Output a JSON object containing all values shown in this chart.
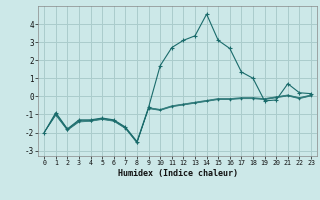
{
  "title": "",
  "xlabel": "Humidex (Indice chaleur)",
  "ylabel": "",
  "bg_color": "#cce8e8",
  "grid_color": "#aacccc",
  "line_color": "#1a6b6b",
  "xlim": [
    -0.5,
    23.5
  ],
  "ylim": [
    -3.3,
    5.0
  ],
  "yticks": [
    -3,
    -2,
    -1,
    0,
    1,
    2,
    3,
    4
  ],
  "xticks": [
    0,
    1,
    2,
    3,
    4,
    5,
    6,
    7,
    8,
    9,
    10,
    11,
    12,
    13,
    14,
    15,
    16,
    17,
    18,
    19,
    20,
    21,
    22,
    23
  ],
  "series_background": [
    {
      "x": [
        0,
        1,
        2,
        3,
        4,
        5,
        6,
        7,
        8,
        9,
        10,
        11,
        12,
        13,
        14,
        15,
        16,
        17,
        18,
        19,
        20,
        21,
        22,
        23
      ],
      "y": [
        -2.0,
        -0.95,
        -1.82,
        -1.35,
        -1.32,
        -1.22,
        -1.32,
        -1.72,
        -2.52,
        -0.62,
        -0.72,
        -0.52,
        -0.42,
        -0.32,
        -0.22,
        -0.12,
        -0.12,
        -0.07,
        -0.07,
        -0.12,
        -0.02,
        0.08,
        -0.07,
        0.08
      ]
    },
    {
      "x": [
        0,
        1,
        2,
        3,
        4,
        5,
        6,
        7,
        8,
        9,
        10,
        11,
        12,
        13,
        14,
        15,
        16,
        17,
        18,
        19,
        20,
        21,
        22,
        23
      ],
      "y": [
        -2.0,
        -1.0,
        -1.85,
        -1.38,
        -1.35,
        -1.25,
        -1.35,
        -1.75,
        -2.55,
        -0.65,
        -0.75,
        -0.55,
        -0.45,
        -0.35,
        -0.25,
        -0.15,
        -0.15,
        -0.1,
        -0.1,
        -0.15,
        -0.05,
        0.05,
        -0.1,
        0.05
      ]
    },
    {
      "x": [
        0,
        1,
        2,
        3,
        4,
        5,
        6,
        7,
        8,
        9,
        10,
        11,
        12,
        13,
        14,
        15,
        16,
        17,
        18,
        19,
        20,
        21,
        22,
        23
      ],
      "y": [
        -2.0,
        -1.05,
        -1.88,
        -1.42,
        -1.38,
        -1.28,
        -1.38,
        -1.78,
        -2.58,
        -0.68,
        -0.78,
        -0.58,
        -0.48,
        -0.38,
        -0.28,
        -0.18,
        -0.18,
        -0.13,
        -0.13,
        -0.18,
        -0.08,
        0.02,
        -0.13,
        0.02
      ]
    }
  ],
  "series_main": {
    "x": [
      0,
      1,
      2,
      3,
      4,
      5,
      6,
      7,
      8,
      9,
      10,
      11,
      12,
      13,
      14,
      15,
      16,
      17,
      18,
      19,
      20,
      21,
      22,
      23
    ],
    "y": [
      -2.0,
      -0.9,
      -1.8,
      -1.3,
      -1.3,
      -1.2,
      -1.3,
      -1.7,
      -2.5,
      -0.6,
      1.7,
      2.7,
      3.1,
      3.35,
      4.55,
      3.1,
      2.65,
      1.35,
      1.0,
      -0.25,
      -0.2,
      0.7,
      0.2,
      0.15
    ]
  }
}
